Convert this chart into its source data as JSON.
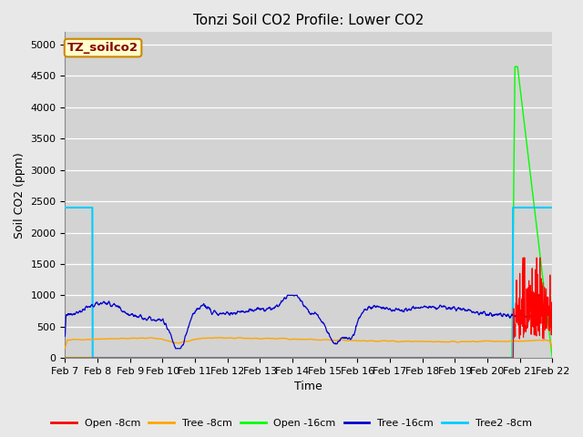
{
  "title": "Tonzi Soil CO2 Profile: Lower CO2",
  "ylabel": "Soil CO2 (ppm)",
  "xlabel": "Time",
  "ylim": [
    0,
    5200
  ],
  "yticks": [
    0,
    500,
    1000,
    1500,
    2000,
    2500,
    3000,
    3500,
    4000,
    4500,
    5000
  ],
  "legend_labels": [
    "Open -8cm",
    "Tree -8cm",
    "Open -16cm",
    "Tree -16cm",
    "Tree2 -8cm"
  ],
  "legend_colors": [
    "#ff0000",
    "#ffa500",
    "#00ff00",
    "#0000cc",
    "#00ccff"
  ],
  "dataset_label": "TZ_soilco2",
  "fig_facecolor": "#e8e8e8",
  "plot_bg_color": "#d3d3d3",
  "grid_color": "#ffffff",
  "title_fontsize": 11,
  "axis_fontsize": 9,
  "tick_fontsize": 8
}
